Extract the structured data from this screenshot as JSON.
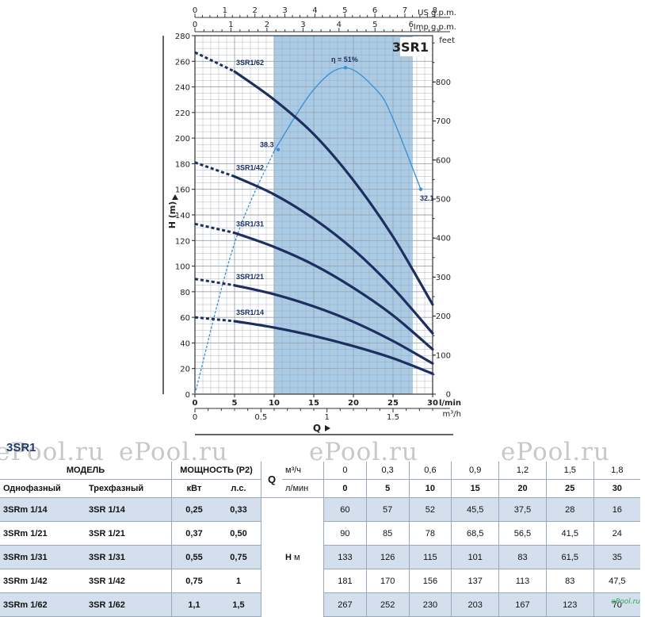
{
  "chart_data": {
    "type": "line",
    "title": "3SR1",
    "xlabel": "Q",
    "ylabel": "H (m)",
    "ylabel_right": "feet",
    "x_unit": "l/min",
    "x_unit_m3h": "m³/h",
    "x_unit_imp": "Imp g.p.m.",
    "x_unit_us": "US g.p.m.",
    "xlim": [
      0,
      30
    ],
    "ylim": [
      0,
      280
    ],
    "grid": true,
    "x_ticks": [
      "0",
      "5",
      "10",
      "15",
      "20",
      "25",
      "30"
    ],
    "y_ticks": [
      "0",
      "20",
      "40",
      "60",
      "80",
      "100",
      "120",
      "140",
      "160",
      "180",
      "200",
      "220",
      "240",
      "260",
      "280"
    ],
    "m3h_ticks": [
      "0",
      "0.5",
      "1",
      "1.5"
    ],
    "imp_ticks": [
      "0",
      "1",
      "2",
      "3",
      "4",
      "5",
      "6"
    ],
    "us_ticks": [
      "0",
      "1",
      "2",
      "3",
      "4",
      "5",
      "6",
      "7",
      "8"
    ],
    "feet_ticks": [
      "0",
      "100",
      "200",
      "300",
      "400",
      "500",
      "600",
      "700",
      "800"
    ],
    "recommended_range": [
      10,
      27.5
    ],
    "series": [
      {
        "name": "3SR1/62",
        "x": [
          0,
          5,
          10,
          15,
          20,
          25,
          30
        ],
        "values": [
          267,
          252,
          230,
          203,
          167,
          123,
          70
        ]
      },
      {
        "name": "3SR1/42",
        "x": [
          0,
          5,
          10,
          15,
          20,
          25,
          30
        ],
        "values": [
          181,
          170,
          156,
          137,
          113,
          83,
          47.5
        ]
      },
      {
        "name": "3SR1/31",
        "x": [
          0,
          5,
          10,
          15,
          20,
          25,
          30
        ],
        "values": [
          133,
          126,
          115,
          101,
          83,
          61.5,
          35
        ]
      },
      {
        "name": "3SR1/21",
        "x": [
          0,
          5,
          10,
          15,
          20,
          25,
          30
        ],
        "values": [
          90,
          85,
          78,
          68.5,
          56.5,
          41.5,
          24
        ]
      },
      {
        "name": "3SR1/14",
        "x": [
          0,
          5,
          10,
          15,
          20,
          25,
          30
        ],
        "values": [
          60,
          57,
          52,
          45.5,
          37.5,
          28,
          16
        ]
      }
    ],
    "efficiency": {
      "x": [
        0,
        5,
        10,
        15,
        19,
        23,
        25,
        28.5
      ],
      "values": [
        0,
        118,
        190,
        238,
        255,
        237,
        215,
        160
      ],
      "labels": {
        "peak": "η = 51%",
        "left": "38.3",
        "right": "32.1"
      }
    }
  },
  "table": {
    "title": "3SR1",
    "watermarks": [
      "ePool.ru",
      "ePool.ru",
      "ePool.ru",
      "ePool.ru"
    ],
    "model_header": "МОДЕЛЬ",
    "power_header": "МОЩНОСТЬ (P2)",
    "single_phase": "Однофазный",
    "three_phase": "Трехфазный",
    "kw": "кВт",
    "hp": "л.с.",
    "q_label": "Q",
    "q_unit_m3h": "м³/ч",
    "q_unit_lmin": "л/мин",
    "h_label": "H",
    "h_unit": "м",
    "flow_m3h": [
      "0",
      "0,3",
      "0,6",
      "0,9",
      "1,2",
      "1,5",
      "1,8"
    ],
    "flow_lmin": [
      "0",
      "5",
      "10",
      "15",
      "20",
      "25",
      "30"
    ],
    "rows": [
      {
        "single": "3SRm 1/14",
        "three": "3SR 1/14",
        "kw": "0,25",
        "hp": "0,33",
        "heads": [
          "60",
          "57",
          "52",
          "45,5",
          "37,5",
          "28",
          "16"
        ]
      },
      {
        "single": "3SRm 1/21",
        "three": "3SR 1/21",
        "kw": "0,37",
        "hp": "0,50",
        "heads": [
          "90",
          "85",
          "78",
          "68,5",
          "56,5",
          "41,5",
          "24"
        ]
      },
      {
        "single": "3SRm 1/31",
        "three": "3SR 1/31",
        "kw": "0,55",
        "hp": "0,75",
        "heads": [
          "133",
          "126",
          "115",
          "101",
          "83",
          "61,5",
          "35"
        ]
      },
      {
        "single": "3SRm 1/42",
        "three": "3SR 1/42",
        "kw": "0,75",
        "hp": "1",
        "heads": [
          "181",
          "170",
          "156",
          "137",
          "113",
          "83",
          "47,5"
        ]
      },
      {
        "single": "3SRm 1/62",
        "three": "3SR 1/62",
        "kw": "1,1",
        "hp": "1,5",
        "heads": [
          "267",
          "252",
          "230",
          "203",
          "167",
          "123",
          "70"
        ]
      }
    ]
  },
  "logo": "ePool.ru",
  "colors": {
    "curve": "#1c2f60",
    "efficiency": "#3a8fd0",
    "band": "#a9cbe6",
    "grid": "#9aa3ad"
  }
}
